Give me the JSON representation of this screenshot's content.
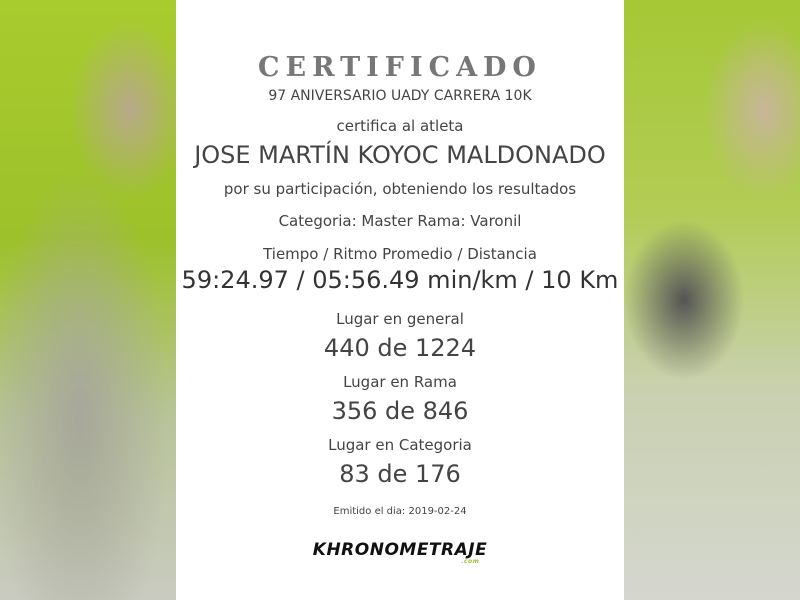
{
  "certificate": {
    "title": "CERTIFICADO",
    "event": "97 ANIVERSARIO UADY CARRERA 10K",
    "certifies": "certifica al atleta",
    "athlete_name": "JOSE MARTÍN KOYOC MALDONADO",
    "participation": "por su participación, obteniendo los resultados",
    "category_line": "Categoria: Master Rama: Varonil",
    "results_header": "Tiempo / Ritmo Promedio / Distancia",
    "results_value": "59:24.97 / 05:56.49 min/km / 10 Km",
    "general_label": "Lugar en general",
    "general_value": "440 de 1224",
    "rama_label": "Lugar en Rama",
    "rama_value": "356 de 846",
    "categoria_label": "Lugar en Categoria",
    "categoria_value": "83 de 176",
    "issued": "Emitido el dia: 2019-02-24",
    "logo_text": "KHRONOMETRAJE",
    "logo_suffix": ".com"
  },
  "colors": {
    "accent": "#9cc12a",
    "text": "#444444",
    "title": "#777777"
  }
}
